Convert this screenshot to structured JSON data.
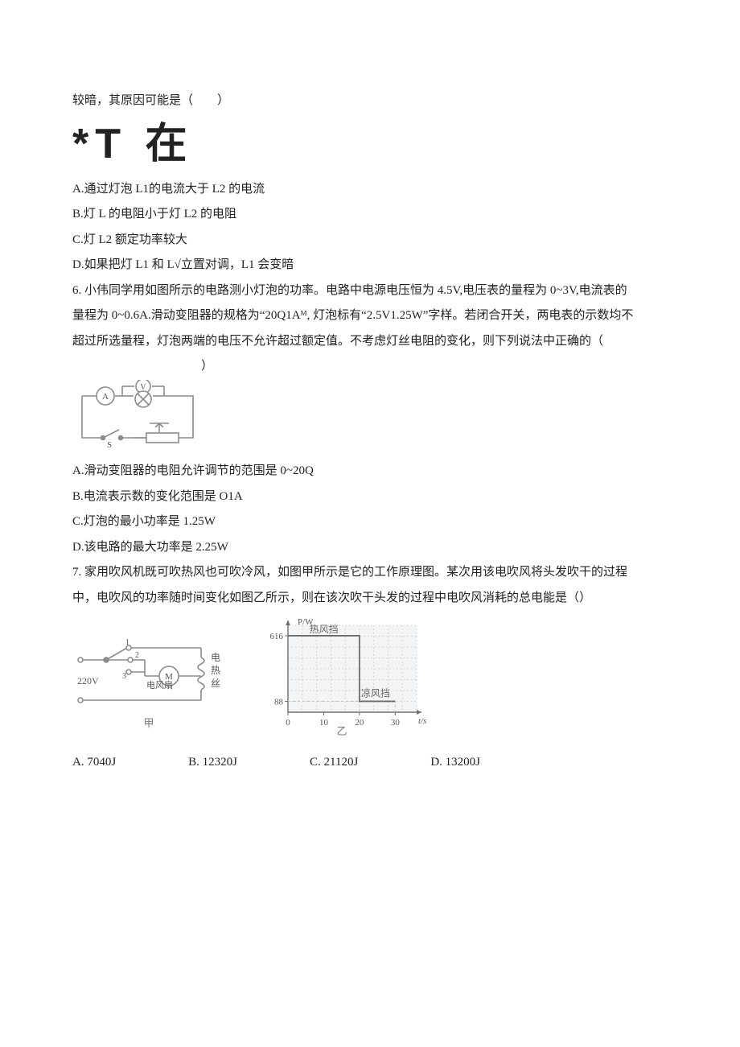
{
  "q5": {
    "stem_tail": "较暗，其原因可能是（　　）",
    "big_glyphs": "*T 在",
    "options": {
      "A": "A.通过灯泡 L1的电流大于 L2 的电流",
      "B": "B.灯 L 的电阻小于灯 L2 的电阻",
      "C": "C.灯 L2 额定功率较大",
      "D": "D.如果把灯 L1 和 L√立置对调，L1 会变暗"
    }
  },
  "q6": {
    "stem1": "6. 小伟同学用如图所示的电路测小灯泡的功率。电路中电源电压恒为 4.5V,电压表的量程为 0~3V,电流表的",
    "stem2": "量程为 0~0.6A.滑动变阻器的规格为“20Q1Aᴹ, 灯泡标有“2.5V1.25W”字样。若闭合开关，两电表的示数均不",
    "stem3": "超过所选量程，灯泡两端的电压不允许超过额定值。不考虑灯丝电阻的变化，则下列说法中正确的（",
    "stem4": "）",
    "options": {
      "A": "A.滑动变阻器的电阻允许调节的范围是 0~20Q",
      "B": "B.电流表示数的变化范围是 O1A",
      "C": "C.灯泡的最小功率是 1.25W",
      "D": "D.该电路的最大功率是 2.25W"
    },
    "circuit": {
      "stroke": "#8a8c8e",
      "fill_bg": "#ffffff",
      "label_V": "V",
      "label_A": "A",
      "label_S": "S"
    }
  },
  "q7": {
    "stem1": "7. 家用吹风机既可吹热风也可吹冷风，如图甲所示是它的工作原理图。某次用该电吹风将头发吹干的过程",
    "stem2": "中，电吹风的功率随时间变化如图乙所示，则在该次吹干头发的过程中电吹风消耗的总电能是（）",
    "fig_left": {
      "stroke": "#8a8c8e",
      "label_220V": "220V",
      "label_1": "1",
      "label_2": "2",
      "label_3": "3",
      "label_fan": "电风扇",
      "label_motor": "M",
      "label_heater1": "电",
      "label_heater2": "热",
      "label_heater3": "丝",
      "caption": "甲"
    },
    "fig_right": {
      "axis_color": "#6b6e70",
      "grid_color": "#bfc2c4",
      "grid_bg": "#f3f4f5",
      "line_color": "#6b6e70",
      "y_label": "P/W",
      "x_label": "t/s",
      "y_ticks": [
        "88",
        "616"
      ],
      "y_tick_vals": [
        88,
        616
      ],
      "x_ticks": [
        "0",
        "10",
        "20",
        "30"
      ],
      "x_tick_vals": [
        0,
        10,
        20,
        30
      ],
      "xlim": [
        0,
        36
      ],
      "ylim": [
        0,
        700
      ],
      "label_hot": "热风挡",
      "label_cool": "凉风挡",
      "series": [
        {
          "t": 0,
          "P": 616
        },
        {
          "t": 20,
          "P": 616
        },
        {
          "t": 20,
          "P": 88
        },
        {
          "t": 30,
          "P": 88
        }
      ],
      "caption": "乙"
    },
    "answers": {
      "A": "A. 7040J",
      "B": "B. 12320J",
      "C": "C. 21120J",
      "D": "D. 13200J"
    }
  }
}
